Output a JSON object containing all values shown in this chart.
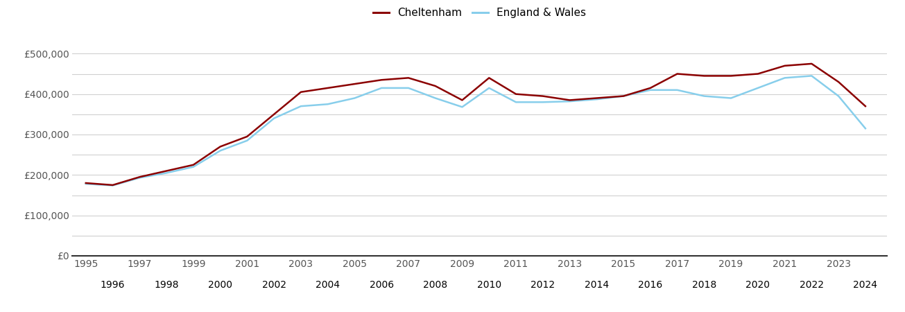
{
  "cheltenham_years": [
    1995,
    1996,
    1997,
    1998,
    1999,
    2000,
    2001,
    2002,
    2003,
    2004,
    2005,
    2006,
    2007,
    2008,
    2009,
    2010,
    2011,
    2012,
    2013,
    2014,
    2015,
    2016,
    2017,
    2018,
    2019,
    2020,
    2021,
    2022,
    2023,
    2024
  ],
  "cheltenham_values": [
    180000,
    175000,
    195000,
    210000,
    225000,
    270000,
    295000,
    350000,
    405000,
    415000,
    425000,
    435000,
    440000,
    420000,
    385000,
    440000,
    400000,
    395000,
    385000,
    390000,
    395000,
    415000,
    450000,
    445000,
    445000,
    450000,
    470000,
    475000,
    430000,
    370000
  ],
  "england_years": [
    1995,
    1996,
    1997,
    1998,
    1999,
    2000,
    2001,
    2002,
    2003,
    2004,
    2005,
    2006,
    2007,
    2008,
    2009,
    2010,
    2011,
    2012,
    2013,
    2014,
    2015,
    2016,
    2017,
    2018,
    2019,
    2020,
    2021,
    2022,
    2023,
    2024
  ],
  "england_values": [
    178000,
    174000,
    193000,
    205000,
    220000,
    260000,
    285000,
    340000,
    370000,
    375000,
    390000,
    415000,
    415000,
    390000,
    368000,
    415000,
    380000,
    380000,
    382000,
    387000,
    395000,
    410000,
    410000,
    395000,
    390000,
    415000,
    440000,
    445000,
    395000,
    315000
  ],
  "cheltenham_color": "#8B0000",
  "england_color": "#87CEEB",
  "cheltenham_label": "Cheltenham",
  "england_label": "England & Wales",
  "ylim": [
    0,
    540000
  ],
  "yticks": [
    0,
    100000,
    200000,
    300000,
    400000,
    500000
  ],
  "ytick_labels": [
    "£0",
    "£100,000",
    "£200,000",
    "£300,000",
    "£400,000",
    "£500,000"
  ],
  "minor_yticks": [
    50000,
    150000,
    250000,
    350000,
    450000
  ],
  "odd_xticks": [
    1995,
    1997,
    1999,
    2001,
    2003,
    2005,
    2007,
    2009,
    2011,
    2013,
    2015,
    2017,
    2019,
    2021,
    2023
  ],
  "even_xticks": [
    1996,
    1998,
    2000,
    2002,
    2004,
    2006,
    2008,
    2010,
    2012,
    2014,
    2016,
    2018,
    2020,
    2022,
    2024
  ],
  "background_color": "#ffffff",
  "grid_color": "#d0d0d0",
  "line_width": 1.8,
  "legend_fontsize": 11,
  "tick_fontsize": 10,
  "tick_color": "#555555"
}
